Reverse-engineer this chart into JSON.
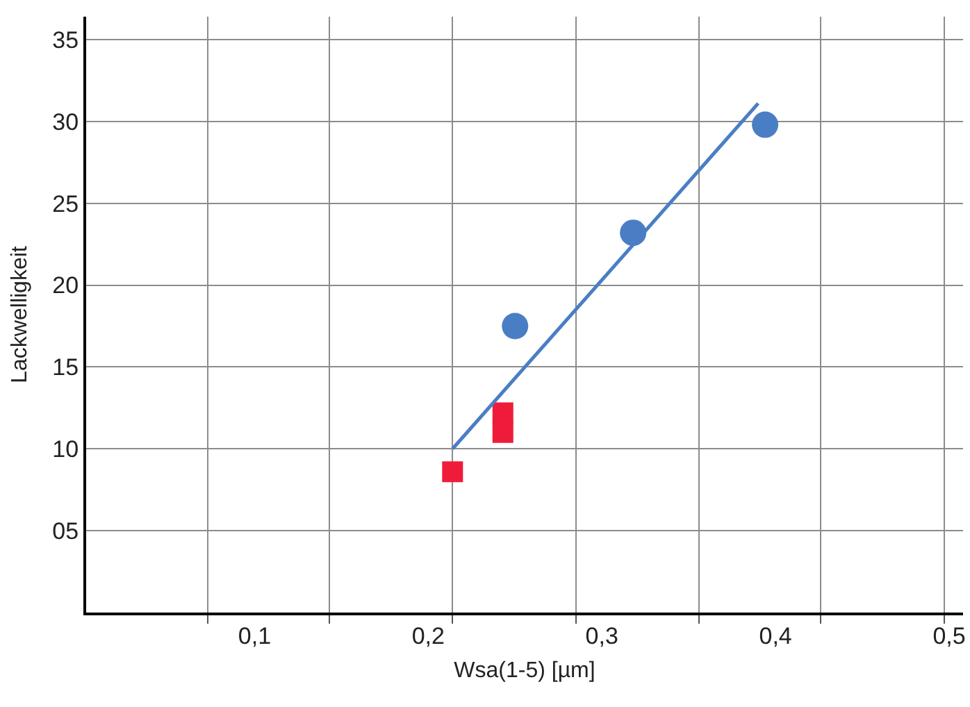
{
  "chart_data": {
    "type": "scatter",
    "xlabel": "Wsa(1-5) [µm]",
    "ylabel": "Lackwelligkeit",
    "xlim": [
      0.003,
      0.508
    ],
    "ylim": [
      0,
      36.4
    ],
    "xticks": [
      {
        "value": 0.1,
        "label": "0,1"
      },
      {
        "value": 0.2,
        "label": "0,2"
      },
      {
        "value": 0.3,
        "label": "0,3"
      },
      {
        "value": 0.4,
        "label": "0,4"
      },
      {
        "value": 0.5,
        "label": "0,5"
      },
      {
        "value": 0.073,
        "label": null
      },
      {
        "value": 0.143,
        "label": null
      },
      {
        "value": 0.214,
        "label": null
      },
      {
        "value": 0.285,
        "label": null
      },
      {
        "value": 0.356,
        "label": null
      },
      {
        "value": 0.426,
        "label": null
      },
      {
        "value": 0.497,
        "label": null
      }
    ],
    "yticks": [
      {
        "value": 5,
        "label": "05"
      },
      10,
      15,
      20,
      25,
      30,
      35
    ],
    "grid": true,
    "series": [
      {
        "type": "scatter",
        "marker": "circle",
        "color": "#4a7ec4",
        "x": [
          0.25,
          0.318,
          0.394
        ],
        "values": [
          17.5,
          23.2,
          29.8
        ]
      },
      {
        "type": "scatter",
        "marker": "square",
        "color": "#ee1c3a",
        "x": [
          0.214,
          0.243,
          0.243
        ],
        "values": [
          8.6,
          11.0,
          12.2
        ]
      },
      {
        "type": "line",
        "marker": "none",
        "color": "#4a7ec4",
        "x": [
          0.214,
          0.39
        ],
        "values": [
          10.0,
          31.1
        ]
      }
    ]
  }
}
